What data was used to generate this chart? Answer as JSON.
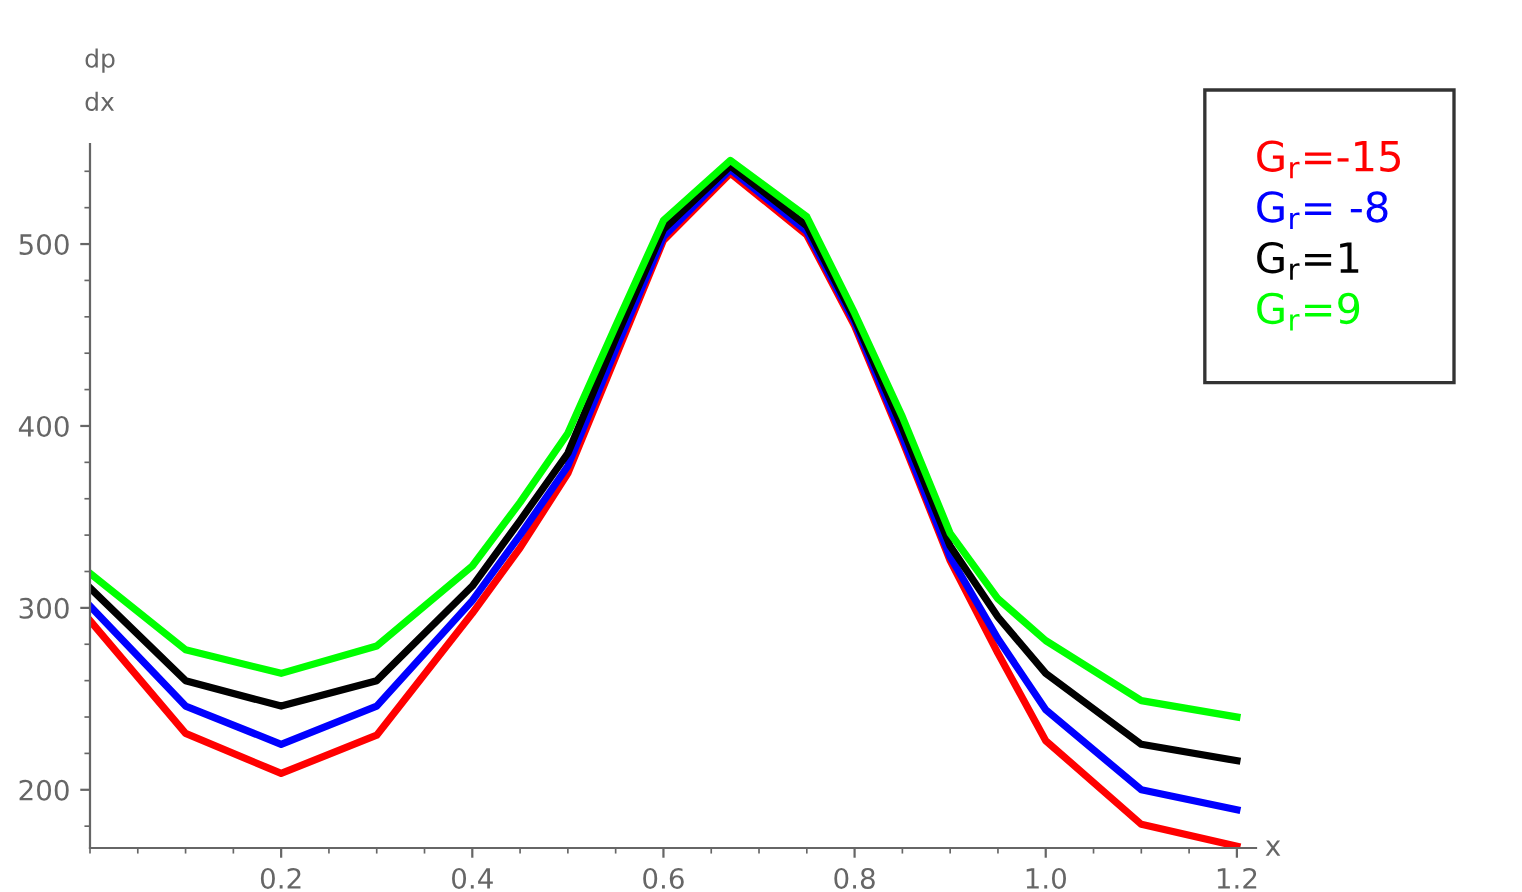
{
  "chart_data": {
    "type": "line",
    "xlabel": "x",
    "ylabel": "dp\ndx",
    "x": [
      0,
      0.1,
      0.2,
      0.3,
      0.4,
      0.45,
      0.5,
      0.55,
      0.6,
      0.67,
      0.75,
      0.8,
      0.85,
      0.9,
      0.95,
      1.0,
      1.1,
      1.2
    ],
    "series": [
      {
        "name": "G$_{r}$=-15",
        "color": "#ff0000",
        "values": [
          293,
          231,
          209,
          230,
          297,
          333,
          374,
          438,
          502,
          539,
          505,
          455,
          392,
          326,
          275,
          227,
          181,
          169
        ]
      },
      {
        "name": "G$_{r}$= -8",
        "color": "#0000ff",
        "values": [
          301,
          246,
          225,
          246,
          304,
          340,
          378,
          442,
          504,
          541,
          507,
          457,
          394,
          328,
          283,
          244,
          200,
          189
        ]
      },
      {
        "name": "G$_{r}$=1",
        "color": "#000000",
        "values": [
          311,
          260,
          246,
          260,
          312,
          348,
          385,
          448,
          508,
          543,
          510,
          459,
          399,
          334,
          295,
          264,
          225,
          216
        ]
      },
      {
        "name": "G$_{r}$=9",
        "color": "#00ff00",
        "values": [
          319,
          277,
          264,
          279,
          323,
          358,
          396,
          455,
          513,
          546,
          515,
          462,
          405,
          341,
          305,
          282,
          249,
          240
        ]
      }
    ],
    "xlim": [
      0,
      1.22
    ],
    "ylim": [
      168,
      555
    ],
    "xticks": [
      0.2,
      0.4,
      0.6,
      0.8,
      {
        "value": 1.0,
        "label": "1.0"
      },
      1.2
    ],
    "yticks": [
      200,
      300,
      400,
      500
    ],
    "grid": false,
    "legend": "top right",
    "marker": "none",
    "line_style": "solid"
  }
}
